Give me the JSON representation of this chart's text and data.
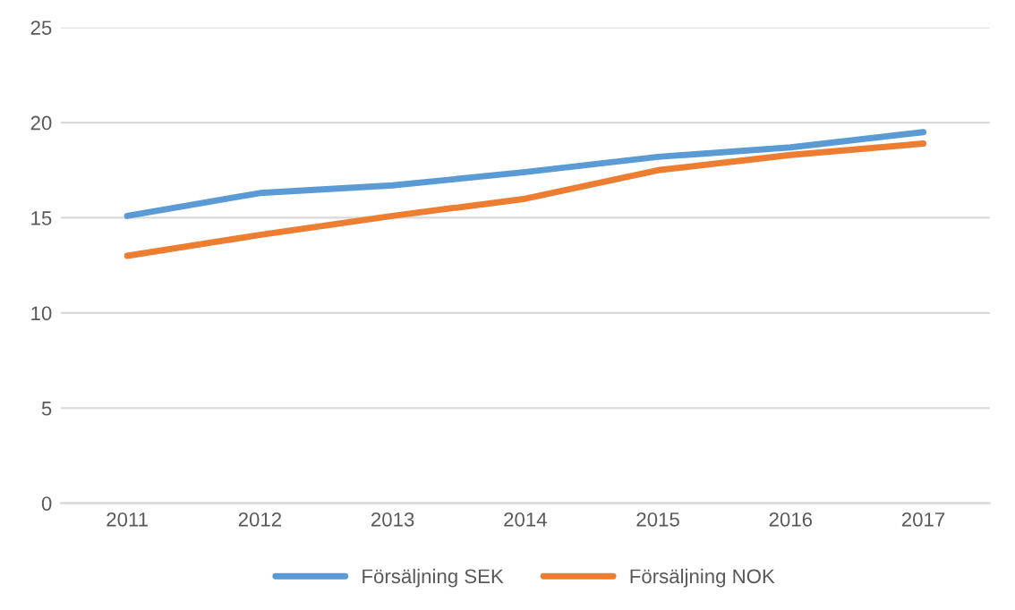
{
  "chart_data": {
    "type": "line",
    "categories": [
      "2011",
      "2012",
      "2013",
      "2014",
      "2015",
      "2016",
      "2017"
    ],
    "series": [
      {
        "name": "Försäljning SEK",
        "color": "#5b9bd5",
        "values": [
          15.1,
          16.3,
          16.7,
          17.4,
          18.2,
          18.7,
          19.5
        ]
      },
      {
        "name": "Försäljning NOK",
        "color": "#ed7d31",
        "values": [
          13.0,
          14.1,
          15.1,
          16.0,
          17.5,
          18.3,
          18.9
        ]
      }
    ],
    "ylim": [
      0,
      25
    ],
    "yticks": [
      0,
      5,
      10,
      15,
      20,
      25
    ],
    "grid": "y",
    "legend": "bottom",
    "marker": "none",
    "line_style": "solid"
  }
}
